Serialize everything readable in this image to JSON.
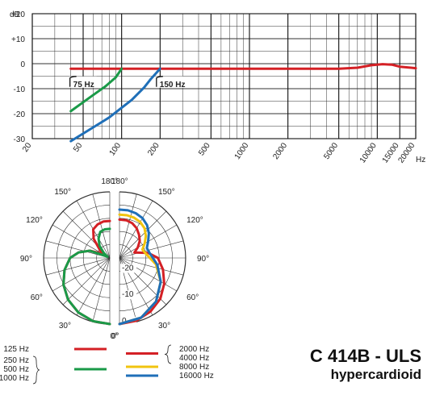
{
  "chart_data": [
    {
      "type": "line",
      "ylabel": "dB",
      "xlabel": "Hz",
      "x_scale": "log",
      "xlim": [
        20,
        20000
      ],
      "ylim": [
        -30,
        20
      ],
      "yticks": [
        "+20",
        "+10",
        "0",
        "-10",
        "-20",
        "-30"
      ],
      "xticks": [
        "20",
        "50",
        "100",
        "200",
        "500",
        "1000",
        "2000",
        "5000",
        "10000",
        "15000",
        "20000"
      ],
      "xtick_values": [
        20,
        50,
        100,
        200,
        500,
        1000,
        2000,
        5000,
        10000,
        15000,
        20000
      ],
      "ytick_values": [
        20,
        10,
        0,
        -10,
        -20,
        -30
      ],
      "grid": true,
      "annotations": [
        {
          "text": "75 Hz",
          "x": 40,
          "y": -8
        },
        {
          "text": "150 Hz",
          "x": 190,
          "y": -8
        }
      ],
      "series": [
        {
          "color": "#d42025",
          "x": [
            40,
            100,
            1000,
            5000,
            7000,
            9000,
            11000,
            13000,
            15000,
            20000
          ],
          "y": [
            -2,
            -2,
            -2,
            -2,
            -1.6,
            -0.6,
            -0.2,
            -0.4,
            -1.2,
            -1.8
          ]
        },
        {
          "color": "#1a9a48",
          "x": [
            40,
            60,
            75,
            90,
            100
          ],
          "y": [
            -19,
            -12.5,
            -9,
            -5.5,
            -2
          ]
        },
        {
          "color": "#1f6fb8",
          "x": [
            40,
            80,
            120,
            150,
            170,
            200
          ],
          "y": [
            -31,
            -21.5,
            -14.5,
            -9.5,
            -6,
            -2
          ]
        }
      ]
    },
    {
      "type": "polar",
      "rlim": [
        -25,
        0
      ],
      "rticks": [
        "-20",
        "-10",
        "0"
      ],
      "angle_labels": [
        "0°",
        "30°",
        "60°",
        "90°",
        "120°",
        "150°",
        "180°"
      ],
      "label_angles": [
        0,
        30,
        60,
        90,
        120,
        150,
        180
      ],
      "groups": [
        {
          "side": "left",
          "labels": [
            "125 Hz",
            "250 Hz",
            "500 Hz",
            "1000 Hz"
          ]
        },
        {
          "side": "right",
          "labels": [
            "2000 Hz",
            "4000 Hz",
            "8000 Hz",
            "16000 Hz"
          ]
        }
      ],
      "legend": [
        {
          "color": "#d42025",
          "labels": [
            "125 Hz"
          ]
        },
        {
          "color": "#1a9a48",
          "labels": [
            "250 Hz",
            "500 Hz",
            "1000 Hz"
          ]
        },
        {
          "color": "#d42025",
          "labels": [
            "2000 Hz",
            "4000 Hz"
          ]
        },
        {
          "color": "#f1c40f",
          "labels": [
            "8000 Hz"
          ]
        },
        {
          "color": "#1f6fb8",
          "labels": [
            "16000 Hz"
          ]
        }
      ],
      "series": [
        {
          "side": "left",
          "color": "#d42025",
          "angles": [
            0,
            15,
            30,
            45,
            60,
            75,
            90,
            100,
            110,
            120,
            130,
            140,
            150,
            160,
            170,
            180
          ],
          "values": [
            0,
            -0.3,
            -1.2,
            -2.7,
            -4.8,
            -7.3,
            -10,
            -13,
            -17,
            -22,
            -20,
            -15.5,
            -12.5,
            -11.5,
            -11,
            -11
          ]
        },
        {
          "side": "left",
          "color": "#1a9a48",
          "angles": [
            0,
            15,
            30,
            45,
            60,
            75,
            90,
            100,
            110,
            120,
            130,
            140,
            150,
            160,
            170,
            180
          ],
          "values": [
            0,
            -0.3,
            -1.2,
            -2.7,
            -4.8,
            -7.3,
            -10,
            -13,
            -17,
            -24,
            -22,
            -19,
            -16.5,
            -14.5,
            -14,
            -14
          ]
        },
        {
          "side": "right",
          "color": "#d42025",
          "angles": [
            0,
            15,
            30,
            45,
            60,
            75,
            90,
            100,
            110,
            120,
            130,
            140,
            150,
            160,
            170,
            180
          ],
          "values": [
            0,
            -0.4,
            -1.6,
            -3.2,
            -5.5,
            -8,
            -10.5,
            -14,
            -19,
            -17,
            -15,
            -13.5,
            -12,
            -11,
            -10.5,
            -10.5
          ]
        },
        {
          "side": "right",
          "color": "#f1c40f",
          "angles": [
            0,
            20,
            40,
            60,
            80,
            100,
            110,
            120,
            130,
            140,
            150,
            160,
            170,
            180
          ],
          "values": [
            0,
            -1,
            -3.5,
            -7,
            -11,
            -15,
            -15.8,
            -14,
            -12,
            -10.3,
            -9.3,
            -8.8,
            -8.6,
            -8.6
          ]
        },
        {
          "side": "right",
          "color": "#1f6fb8",
          "angles": [
            0,
            20,
            40,
            60,
            80,
            100,
            110,
            120,
            130,
            140,
            150,
            160,
            170,
            180
          ],
          "values": [
            0,
            -1,
            -3.5,
            -7,
            -10.5,
            -13.5,
            -14,
            -12.5,
            -10.5,
            -8.8,
            -7.6,
            -7,
            -6.7,
            -6.7
          ]
        }
      ]
    }
  ],
  "product": {
    "model": "C 414B - ULS",
    "pattern": "hypercardioid"
  }
}
